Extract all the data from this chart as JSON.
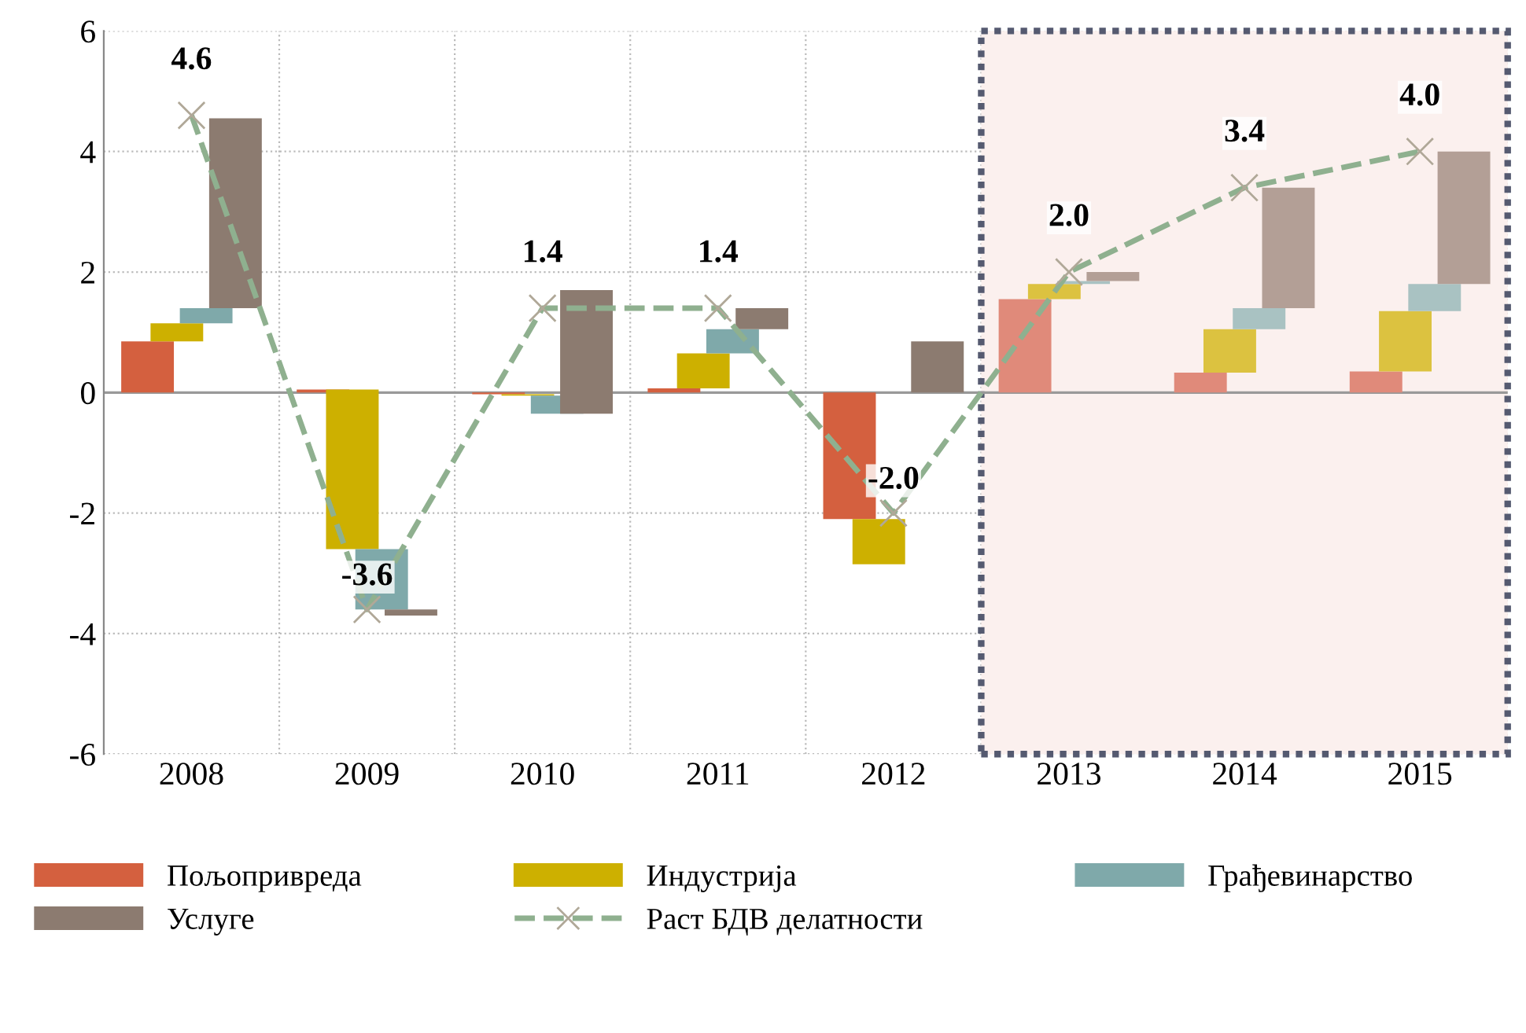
{
  "chart_data": {
    "type": "bar",
    "categories": [
      "2008",
      "2009",
      "2010",
      "2011",
      "2012",
      "2013",
      "2014",
      "2015"
    ],
    "series": [
      {
        "name": "Пољопривреда",
        "color": "#d4603f",
        "colors": [
          "#d4603f",
          "#d4603f",
          "#d4603f",
          "#d4603f",
          "#d4603f",
          "#e08a7a",
          "#e08a7a",
          "#e08a7a"
        ],
        "base": [
          0,
          0,
          0,
          0,
          0,
          0,
          0,
          0
        ],
        "values": [
          0.85,
          0.05,
          -0.03,
          0.07,
          -2.1,
          1.55,
          0.33,
          0.35
        ]
      },
      {
        "name": "Индустрија",
        "color": "#cdb000",
        "colors": [
          "#cdb000",
          "#cdb000",
          "#cdb000",
          "#cdb000",
          "#cdb000",
          "#dcc240",
          "#dcc240",
          "#dcc240"
        ],
        "base": [
          0.85,
          0.05,
          -0.03,
          0.07,
          -2.1,
          1.55,
          0.33,
          0.35
        ],
        "values": [
          0.3,
          -2.65,
          -0.02,
          0.58,
          -0.75,
          0.25,
          0.72,
          1.0
        ]
      },
      {
        "name": "Грађевинарство",
        "color": "#7fa9aa",
        "colors": [
          "#7fa9aa",
          "#7fa9aa",
          "#7fa9aa",
          "#7fa9aa",
          "#7fa9aa",
          "#a9c2c2",
          "#a9c2c2",
          "#a9c2c2"
        ],
        "base": [
          1.15,
          -2.6,
          -0.05,
          0.65,
          null,
          1.8,
          1.05,
          1.35
        ],
        "values": [
          0.25,
          -1.0,
          -0.3,
          0.4,
          null,
          0.05,
          0.35,
          0.45
        ]
      },
      {
        "name": "Услуге",
        "color": "#8c7b70",
        "colors": [
          "#8c7b70",
          "#8c7b70",
          "#8c7b70",
          "#8c7b70",
          "#8c7b70",
          "#b39f96",
          "#b39f96",
          "#b39f96"
        ],
        "base": [
          1.4,
          -3.6,
          -0.35,
          1.05,
          0,
          1.85,
          1.4,
          1.8
        ],
        "values": [
          3.15,
          -0.1,
          2.05,
          0.35,
          0.85,
          0.15,
          2.0,
          2.2
        ]
      },
      {
        "name": "Раст БДВ делатности",
        "type": "line",
        "color": "#8fb08f",
        "line_style": "dashed",
        "marker": "cross",
        "values": [
          4.6,
          -3.6,
          1.4,
          1.4,
          -2.0,
          2.0,
          3.4,
          4.0
        ],
        "value_labels": [
          "4.6",
          "-3.6",
          "1.4",
          "1.4",
          "-2.0",
          "2.0",
          "3.4",
          "4.0"
        ]
      }
    ],
    "ylim": [
      -6,
      6
    ],
    "yticks": [
      -6,
      -4,
      -2,
      0,
      2,
      4,
      6
    ],
    "grid": true,
    "legend": "bottom",
    "bands": [
      {
        "axis": "x",
        "from": "2013",
        "to": "2015",
        "label": null,
        "color": "#fbf0ee"
      }
    ]
  }
}
